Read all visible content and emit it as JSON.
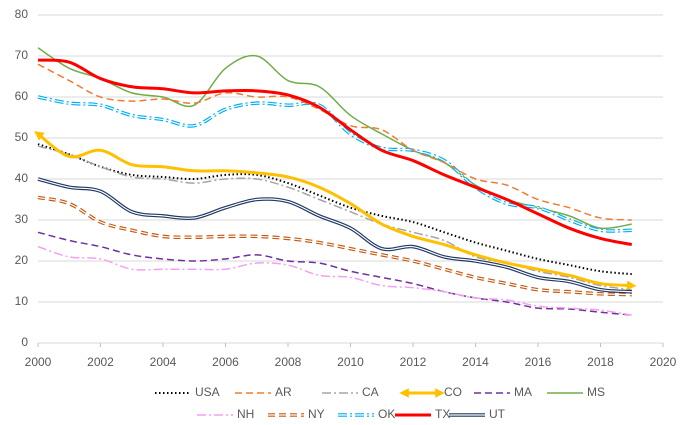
{
  "chart_data": {
    "type": "line",
    "x": [
      2000,
      2001,
      2002,
      2003,
      2004,
      2005,
      2006,
      2007,
      2008,
      2009,
      2010,
      2011,
      2012,
      2013,
      2014,
      2015,
      2016,
      2017,
      2018,
      2019
    ],
    "xlim": [
      2000,
      2020
    ],
    "xticks": [
      2000,
      2002,
      2004,
      2006,
      2008,
      2010,
      2012,
      2014,
      2016,
      2018,
      2020
    ],
    "ylim": [
      0,
      80
    ],
    "yticks": [
      0,
      10,
      20,
      30,
      40,
      50,
      60,
      70,
      80
    ],
    "series": [
      {
        "name": "USA",
        "color": "#000000",
        "style": "dotted",
        "width": 2,
        "values": [
          48.5,
          46,
          43,
          41,
          40.5,
          40,
          41,
          41,
          39,
          36,
          33,
          31,
          29.5,
          27,
          24.5,
          22.5,
          20.5,
          19,
          17.5,
          16.8
        ]
      },
      {
        "name": "AR",
        "color": "#ed7d31",
        "style": "dashed",
        "width": 1.5,
        "values": [
          68,
          64,
          60,
          59,
          59.5,
          58.5,
          61,
          60,
          60,
          57,
          53,
          52,
          47,
          44,
          40,
          38.5,
          35,
          33,
          30.5,
          30
        ]
      },
      {
        "name": "CA",
        "color": "#a5a5a5",
        "style": "dashdot",
        "width": 1.5,
        "values": [
          48,
          46,
          43,
          40.5,
          40,
          39,
          40,
          40,
          38,
          35,
          32,
          29,
          27,
          25,
          21,
          19.5,
          17.5,
          16,
          14,
          13
        ]
      },
      {
        "name": "CO",
        "color": "#ffc000",
        "style": "solid",
        "width": 3,
        "arrows": true,
        "values": [
          51,
          45.5,
          47,
          43.5,
          43,
          42,
          42,
          41.5,
          40.5,
          38,
          34,
          29,
          26,
          24,
          21.5,
          19.5,
          18,
          16.5,
          14.5,
          14
        ]
      },
      {
        "name": "MA",
        "color": "#7030a0",
        "style": "dashed",
        "width": 1.5,
        "values": [
          27,
          25,
          23.5,
          21.5,
          20.5,
          20,
          20.5,
          21.5,
          20,
          19.5,
          17.5,
          16,
          14.5,
          12.5,
          11,
          10,
          8.5,
          8.3,
          7.5,
          6.8
        ]
      },
      {
        "name": "MS",
        "color": "#70ad47",
        "style": "solid",
        "width": 1.5,
        "values": [
          72,
          67,
          64.5,
          61,
          60,
          58,
          67,
          70,
          64,
          62.5,
          55.5,
          51,
          47,
          44,
          38.5,
          35,
          33,
          31,
          28,
          29
        ]
      },
      {
        "name": "NH",
        "color": "#f4a0f0",
        "style": "dashdot",
        "width": 1.5,
        "values": [
          23.5,
          21,
          20.5,
          18,
          18,
          18,
          18,
          19.5,
          19,
          16.5,
          16,
          14,
          13.5,
          12.5,
          11,
          10.5,
          9,
          8.5,
          8,
          6.8
        ]
      },
      {
        "name": "NY",
        "color": "#c55a11",
        "style": "dashed",
        "width": 3.5,
        "double": true,
        "values": [
          35.5,
          34,
          29.5,
          27.5,
          26,
          25.8,
          26,
          26,
          25.5,
          24.5,
          23,
          21.5,
          20,
          18,
          16,
          14.5,
          13,
          12.5,
          12,
          11.8
        ]
      },
      {
        "name": "OK",
        "color": "#00b0f0",
        "style": "dashdot",
        "width": 3.5,
        "double": true,
        "values": [
          60,
          58.5,
          58,
          55.5,
          54.5,
          53,
          57,
          58.5,
          58,
          58,
          51,
          47.5,
          47,
          44.5,
          38,
          34,
          33,
          30,
          27.5,
          27.5
        ]
      },
      {
        "name": "TX",
        "color": "#ff0000",
        "style": "solid",
        "width": 3,
        "values": [
          69,
          68.5,
          64.5,
          62.5,
          62,
          61,
          61.5,
          61.5,
          60.5,
          57.5,
          52,
          47,
          44.5,
          41,
          38,
          35,
          31.5,
          28,
          25.5,
          24
        ]
      },
      {
        "name": "UT",
        "color": "#1f3864",
        "style": "solid",
        "width": 3.5,
        "double": true,
        "values": [
          40,
          38,
          37,
          32,
          31,
          30.5,
          33,
          35,
          34.5,
          31,
          28,
          23,
          23.5,
          21,
          20,
          18.5,
          16,
          15,
          13,
          12.5
        ]
      }
    ]
  }
}
